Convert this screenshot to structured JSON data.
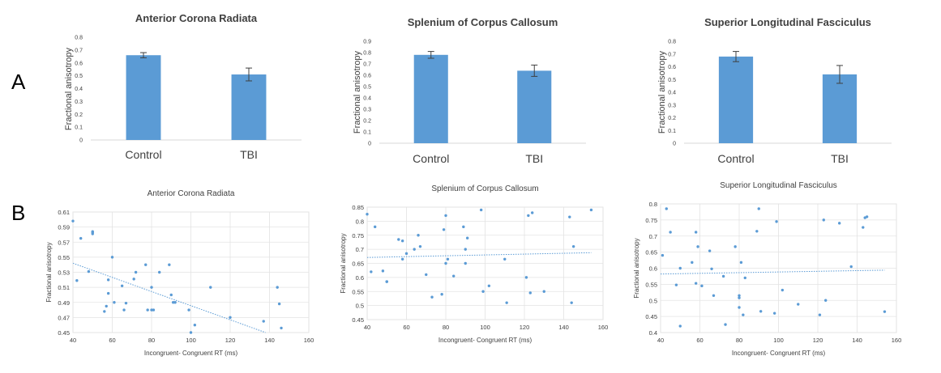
{
  "panel_labels": {
    "a": "A",
    "b": "B"
  },
  "colors": {
    "bar": "#5b9bd5",
    "point": "#5b9bd5",
    "trend": "#5b9bd5",
    "axis": "#d9d9d9",
    "grid": "#e3e3e3",
    "text": "#404040"
  },
  "chart_data": [
    {
      "type": "bar",
      "title": "Anterior Corona Radiata",
      "xlabel": "",
      "ylabel": "Fractional anisotropy",
      "categories": [
        "Control",
        "TBI"
      ],
      "values": [
        0.66,
        0.51
      ],
      "errors": [
        0.02,
        0.05
      ],
      "ylim": [
        0,
        0.8
      ],
      "yticks": [
        "0",
        "0.1",
        "0.2",
        "0.3",
        "0.4",
        "0.5",
        "0.6",
        "0.7",
        "0.8"
      ]
    },
    {
      "type": "bar",
      "title": "Splenium of Corpus Callosum",
      "xlabel": "",
      "ylabel": "Fractional anisotropy",
      "categories": [
        "Control",
        "TBI"
      ],
      "values": [
        0.78,
        0.64
      ],
      "errors": [
        0.03,
        0.05
      ],
      "ylim": [
        0,
        0.9
      ],
      "yticks": [
        "0",
        "0.1",
        "0.2",
        "0.3",
        "0.4",
        "0.5",
        "0.6",
        "0.7",
        "0.8",
        "0.9"
      ]
    },
    {
      "type": "bar",
      "title": "Superior Longitudinal Fasciculus",
      "xlabel": "",
      "ylabel": "Fractional anisotropy",
      "categories": [
        "Control",
        "TBI"
      ],
      "values": [
        0.68,
        0.54
      ],
      "errors": [
        0.04,
        0.07
      ],
      "ylim": [
        0,
        0.8
      ],
      "yticks": [
        "0",
        "0.1",
        "0.2",
        "0.3",
        "0.4",
        "0.5",
        "0.6",
        "0.7",
        "0.8"
      ]
    },
    {
      "type": "scatter",
      "title": "Anterior Corona Radiata",
      "xlabel": "Incongruent- Congruent RT (ms)",
      "ylabel": "Fractional anisotropy",
      "xlim": [
        40,
        160
      ],
      "ylim": [
        0.45,
        0.61
      ],
      "xticks": [
        "40",
        "60",
        "80",
        "100",
        "120",
        "140",
        "160"
      ],
      "yticks": [
        "0.45",
        "0.47",
        "0.49",
        "0.51",
        "0.53",
        "0.55",
        "0.57",
        "0.59",
        "0.61"
      ],
      "x": [
        40,
        42,
        44,
        50,
        50,
        50,
        48,
        58,
        56,
        58,
        57,
        60,
        61,
        65,
        66,
        67,
        71,
        72,
        77,
        78,
        80,
        80,
        81,
        84,
        89,
        90,
        91,
        92,
        99,
        100,
        102,
        110,
        120,
        137,
        144,
        145,
        146
      ],
      "y": [
        0.598,
        0.519,
        0.575,
        0.583,
        0.581,
        0.584,
        0.531,
        0.52,
        0.478,
        0.502,
        0.485,
        0.55,
        0.49,
        0.512,
        0.48,
        0.489,
        0.521,
        0.53,
        0.54,
        0.48,
        0.51,
        0.48,
        0.48,
        0.53,
        0.54,
        0.5,
        0.49,
        0.49,
        0.48,
        0.45,
        0.46,
        0.51,
        0.47,
        0.465,
        0.51,
        0.488,
        0.456
      ],
      "trend": {
        "x": [
          40,
          138
        ],
        "y": [
          0.542,
          0.45
        ]
      }
    },
    {
      "type": "scatter",
      "title": "Splenium of Corpus Callosum",
      "xlabel": "Incongruent- Congruent RT (ms)",
      "ylabel": "Fractional anisotropy",
      "xlim": [
        40,
        160
      ],
      "ylim": [
        0.45,
        0.85
      ],
      "xticks": [
        "40",
        "60",
        "80",
        "100",
        "120",
        "140",
        "160"
      ],
      "yticks": [
        "0.45",
        "0.5",
        "0.55",
        "0.6",
        "0.65",
        "0.7",
        "0.75",
        "0.8",
        "0.85"
      ],
      "x": [
        40,
        42,
        44,
        48,
        50,
        50,
        56,
        58,
        58,
        60,
        64,
        66,
        67,
        70,
        73,
        78,
        79,
        80,
        80,
        81,
        84,
        89,
        90,
        90,
        91,
        98,
        99,
        102,
        110,
        111,
        121,
        122,
        123,
        124,
        130,
        143,
        144,
        145,
        154
      ],
      "y": [
        0.825,
        0.62,
        0.78,
        0.623,
        0.585,
        0.585,
        0.735,
        0.73,
        0.665,
        0.685,
        0.7,
        0.75,
        0.71,
        0.61,
        0.53,
        0.54,
        0.77,
        0.82,
        0.65,
        0.665,
        0.605,
        0.78,
        0.65,
        0.7,
        0.74,
        0.84,
        0.55,
        0.57,
        0.665,
        0.51,
        0.6,
        0.82,
        0.545,
        0.83,
        0.55,
        0.815,
        0.51,
        0.71,
        0.84
      ],
      "trend": {
        "x": [
          40,
          154
        ],
        "y": [
          0.671,
          0.688
        ]
      }
    },
    {
      "type": "scatter",
      "title": "Superior Longitudinal Fasciculus",
      "xlabel": "Incongruent- Congruent RT (ms)",
      "ylabel": "Fractional anisotropy",
      "xlim": [
        40,
        160
      ],
      "ylim": [
        0.4,
        0.8
      ],
      "xticks": [
        "40",
        "60",
        "80",
        "100",
        "120",
        "140",
        "160"
      ],
      "yticks": [
        "0.4",
        "0.45",
        "0.5",
        "0.55",
        "0.6",
        "0.65",
        "0.7",
        "0.75",
        "0.8"
      ],
      "x": [
        41,
        43,
        45,
        50,
        48,
        50,
        56,
        58,
        59,
        61,
        58,
        65,
        66,
        67,
        72,
        73,
        78,
        80,
        80,
        80,
        81,
        82,
        83,
        89,
        90,
        91,
        98,
        99,
        102,
        110,
        121,
        123,
        124,
        131,
        137,
        143,
        144,
        145,
        154
      ],
      "y": [
        0.64,
        0.785,
        0.712,
        0.42,
        0.548,
        0.6,
        0.618,
        0.712,
        0.667,
        0.545,
        0.553,
        0.654,
        0.598,
        0.515,
        0.575,
        0.425,
        0.667,
        0.508,
        0.515,
        0.478,
        0.618,
        0.455,
        0.57,
        0.715,
        0.785,
        0.466,
        0.46,
        0.745,
        0.532,
        0.488,
        0.455,
        0.75,
        0.5,
        0.74,
        0.605,
        0.727,
        0.757,
        0.76,
        0.465
      ],
      "trend": {
        "x": [
          40,
          154
        ],
        "y": [
          0.582,
          0.594
        ]
      }
    }
  ]
}
